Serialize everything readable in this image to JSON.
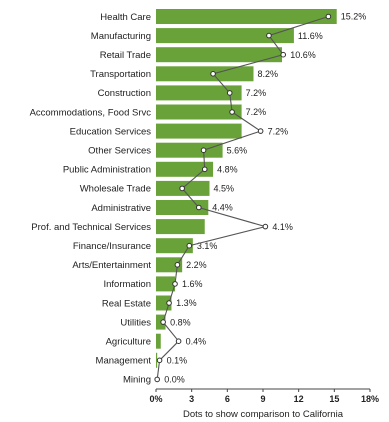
{
  "chart_data": {
    "type": "bar",
    "orientation": "horizontal",
    "title": "",
    "xlabel": "Dots to show comparison to California",
    "ylabel": "",
    "xlim": [
      0,
      18
    ],
    "x_ticks": [
      0,
      3,
      6,
      9,
      12,
      15,
      18
    ],
    "x_tick_labels": [
      "0%",
      "3",
      "6",
      "9",
      "12",
      "15",
      "18%"
    ],
    "grid": false,
    "bar_color": "#6aa23a",
    "line_color": "#555555",
    "categories": [
      "Health Care",
      "Manufacturing",
      "Retail Trade",
      "Transportation",
      "Construction",
      "Accommodations, Food Srvc",
      "Education Services",
      "Other Services",
      "Public Administration",
      "Wholesale Trade",
      "Administrative",
      "Prof. and Technical Services",
      "Finance/Insurance",
      "Arts/Entertainment",
      "Information",
      "Real Estate",
      "Utilities",
      "Agriculture",
      "Management",
      "Mining"
    ],
    "values": [
      15.2,
      11.6,
      10.6,
      8.2,
      7.2,
      7.2,
      7.2,
      5.6,
      4.8,
      4.5,
      4.4,
      4.1,
      3.1,
      2.2,
      1.6,
      1.3,
      0.8,
      0.4,
      0.1,
      0.0
    ],
    "value_labels": [
      "15.2%",
      "11.6%",
      "10.6%",
      "8.2%",
      "7.2%",
      "7.2%",
      "7.2%",
      "5.6%",
      "4.8%",
      "4.5%",
      "4.4%",
      "4.1%",
      "3.1%",
      "2.2%",
      "1.6%",
      "1.3%",
      "0.8%",
      "0.4%",
      "0.1%",
      "0.0%"
    ],
    "comparison_values": [
      14.5,
      9.5,
      10.7,
      4.8,
      6.2,
      6.4,
      8.8,
      4.0,
      4.1,
      2.2,
      3.6,
      9.2,
      2.8,
      1.8,
      1.6,
      1.1,
      0.6,
      1.9,
      0.3,
      0.1
    ]
  }
}
